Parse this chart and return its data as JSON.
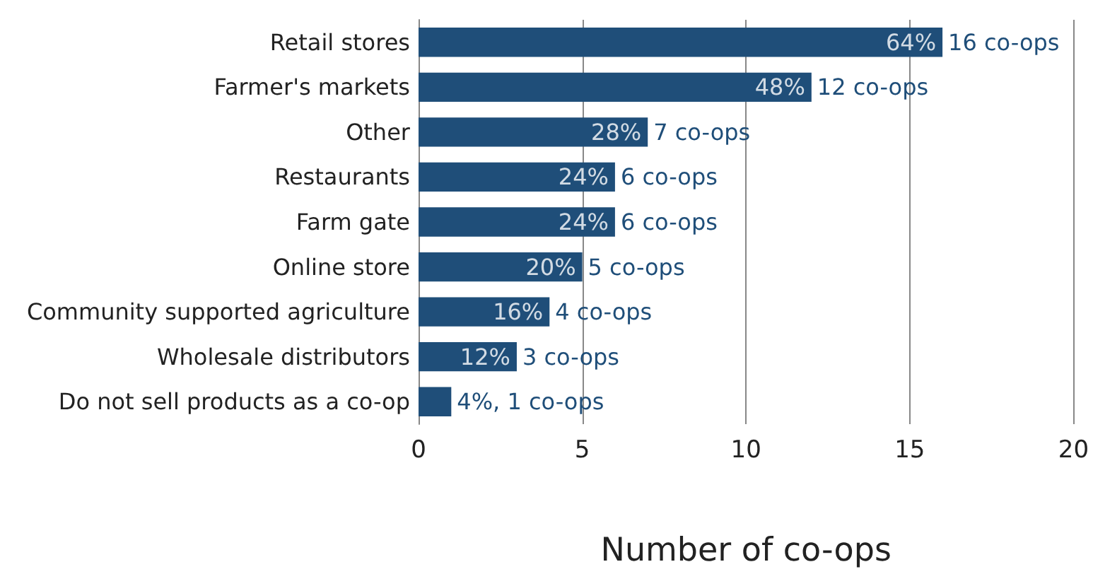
{
  "chart_data": {
    "type": "bar",
    "orientation": "horizontal",
    "xlabel": "Number of co-ops",
    "categories": [
      "Retail stores",
      "Farmer's markets",
      "Other",
      "Restaurants",
      "Farm gate",
      "Online store",
      "Community supported agriculture",
      "Wholesale distributors",
      "Do not sell products as a co-op"
    ],
    "values": [
      16,
      12,
      7,
      6,
      6,
      5,
      4,
      3,
      1
    ],
    "value_labels": [
      "16 co-ops",
      "12 co-ops",
      "7 co-ops",
      "6 co-ops",
      "6 co-ops",
      "5 co-ops",
      "4 co-ops",
      "3 co-ops",
      "4%, 1 co-ops"
    ],
    "color": "#1f4e79",
    "xlim": [
      0,
      20
    ],
    "xticks": [
      0,
      5,
      10,
      15,
      20
    ],
    "grid": "x",
    "annotations": [
      {
        "text": "64%",
        "x": 16,
        "y": "Retail stores"
      },
      {
        "text": "48%",
        "x": 12,
        "y": "Farmer's markets"
      },
      {
        "text": "28%",
        "x": 7,
        "y": "Other"
      },
      {
        "text": "24%",
        "x": 6,
        "y": "Restaurants"
      },
      {
        "text": "24%",
        "x": 6,
        "y": "Farm gate"
      },
      {
        "text": "20%",
        "x": 5,
        "y": "Online store"
      },
      {
        "text": "16%",
        "x": 4,
        "y": "Community supported agriculture"
      },
      {
        "text": "12%",
        "x": 3,
        "y": "Wholesale distributors"
      }
    ]
  }
}
